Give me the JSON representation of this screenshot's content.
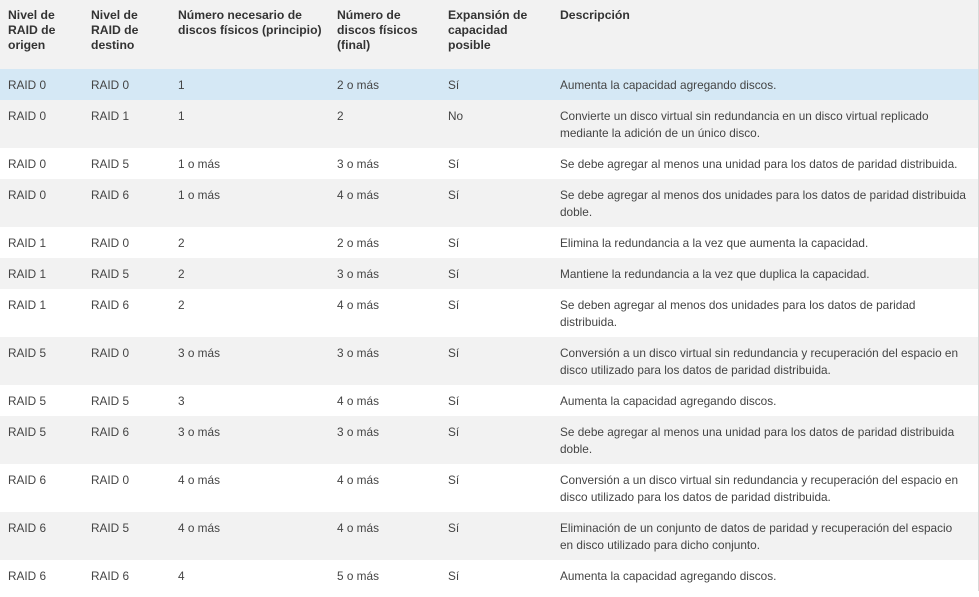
{
  "table": {
    "headers": [
      "Nivel de RAID de origen",
      "Nivel de RAID de destino",
      "Número necesario de discos físicos (principio)",
      "Número de discos físicos (final)",
      "Expansión de capacidad posible",
      "Descripción"
    ],
    "rows": [
      [
        "RAID 0",
        "RAID 0",
        "1",
        "2 o más",
        "Sí",
        "Aumenta la capacidad agregando discos."
      ],
      [
        "RAID 0",
        "RAID 1",
        "1",
        "2",
        "No",
        "Convierte un disco virtual sin redundancia en un disco virtual replicado mediante la adición de un único disco."
      ],
      [
        "RAID 0",
        "RAID 5",
        "1 o más",
        "3 o más",
        "Sí",
        "Se debe agregar al menos una unidad para los datos de paridad distribuida."
      ],
      [
        "RAID 0",
        "RAID 6",
        "1 o más",
        "4 o más",
        "Sí",
        "Se debe agregar al menos dos unidades para los datos de paridad distribuida doble."
      ],
      [
        "RAID 1",
        "RAID 0",
        "2",
        "2 o más",
        "Sí",
        "Elimina la redundancia a la vez que aumenta la capacidad."
      ],
      [
        "RAID 1",
        "RAID 5",
        "2",
        "3 o más",
        "Sí",
        "Mantiene la redundancia a la vez que duplica la capacidad."
      ],
      [
        "RAID 1",
        "RAID 6",
        "2",
        "4 o más",
        "Sí",
        "Se deben agregar al menos dos unidades para los datos de paridad distribuida."
      ],
      [
        "RAID 5",
        "RAID 0",
        "3 o más",
        "3 o más",
        "Sí",
        "Conversión a un disco virtual sin redundancia y recuperación del espacio en disco utilizado para los datos de paridad distribuida."
      ],
      [
        "RAID 5",
        "RAID 5",
        "3",
        "4 o más",
        "Sí",
        "Aumenta la capacidad agregando discos."
      ],
      [
        "RAID 5",
        "RAID 6",
        "3 o más",
        "3 o más",
        "Sí",
        "Se debe agregar al menos una unidad para los datos de paridad distribuida doble."
      ],
      [
        "RAID 6",
        "RAID 0",
        "4 o más",
        "4 o más",
        "Sí",
        "Conversión a un disco virtual sin redundancia y recuperación del espacio en disco utilizado para los datos de paridad distribuida."
      ],
      [
        "RAID 6",
        "RAID 5",
        "4 o más",
        "4 o más",
        "Sí",
        "Eliminación de un conjunto de datos de paridad y recuperación del espacio en disco utilizado para dicho conjunto."
      ],
      [
        "RAID 6",
        "RAID 6",
        "4",
        "5 o más",
        "Sí",
        "Aumenta la capacidad agregando discos."
      ]
    ],
    "selected_row": 0
  },
  "colors": {
    "header_bg": "#f2f2f2",
    "row_alt_bg": "#f2f2f2",
    "row_bg": "#ffffff",
    "selected_bg": "#d5e8f5",
    "text": "#444444"
  }
}
